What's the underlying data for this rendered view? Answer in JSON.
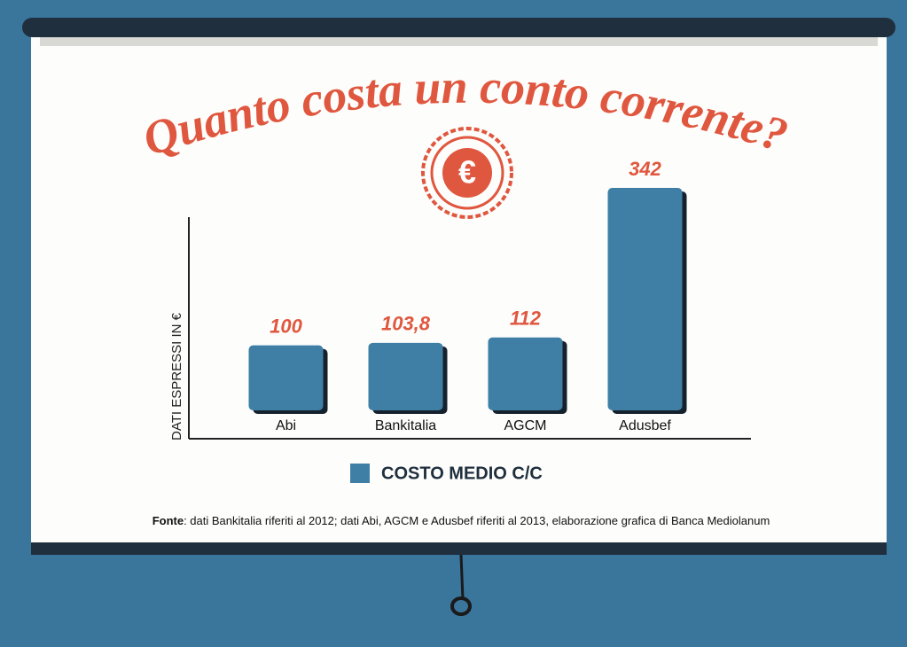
{
  "chart_data": {
    "type": "bar",
    "title": "Quanto costa un conto corrente?",
    "badge": "€",
    "y_label": "DATI ESPRESSI IN €",
    "categories": [
      "Abi",
      "Bankitalia",
      "AGCM",
      "Adusbef"
    ],
    "series": [
      {
        "name": "COSTO MEDIO C/C",
        "color": "#3f7fa6",
        "values": [
          100,
          103.8,
          112,
          342
        ],
        "value_labels": [
          "100",
          "103,8",
          "112",
          "342"
        ]
      }
    ],
    "source": {
      "label": "Fonte",
      "text": ": dati Bankitalia riferiti al 2012; dati Abi, AGCM e Adusbef riferiti al 2013, elaborazione grafica di Banca Mediolanum"
    }
  }
}
